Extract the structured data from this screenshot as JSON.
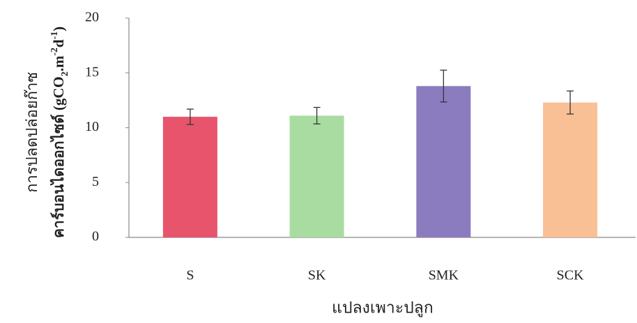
{
  "chart_data": {
    "type": "bar",
    "categories": [
      "S",
      "SK",
      "SMK",
      "SCK"
    ],
    "values": [
      11.0,
      11.1,
      13.8,
      12.3
    ],
    "errors": [
      0.7,
      0.75,
      1.45,
      1.05
    ],
    "colors": [
      "#e8546b",
      "#a9dca1",
      "#8b7cc0",
      "#f9c096"
    ],
    "ylim": [
      0,
      20
    ],
    "yticks": [
      0,
      5,
      10,
      15,
      20
    ],
    "x_label": "แปลงเพาะปลูก",
    "y_label_line1": "การปลดปล่อยก๊าซ",
    "y_label_line2": [
      "คาร์บอนไดออกไซด์ (gCO",
      "2",
      ".m",
      "-2",
      "d",
      "-1",
      ")"
    ]
  }
}
